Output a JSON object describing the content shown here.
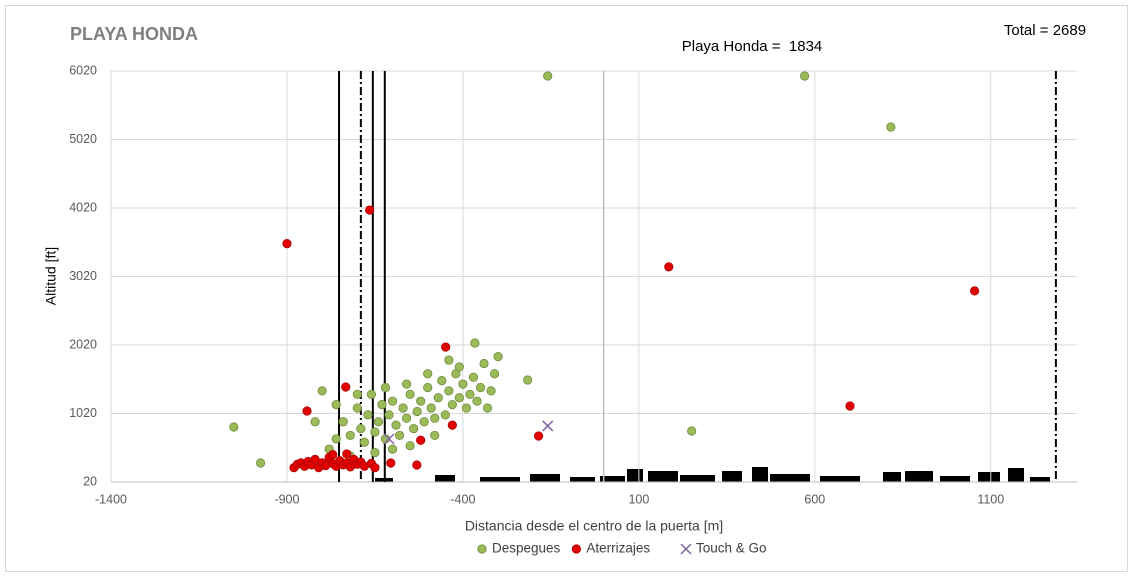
{
  "chart_data": {
    "type": "scatter",
    "title": "PLAYA HONDA",
    "total_label": "Total = 2689",
    "subtitle": "Playa Honda =  1834",
    "xlabel": "Distancia desde el centro de la puerta [m]",
    "ylabel": "Altitud [ft]",
    "xlim": [
      -1400,
      1345
    ],
    "ylim": [
      20,
      6020
    ],
    "xticks": [
      -1400,
      -900,
      -400,
      100,
      600,
      1100
    ],
    "yticks": [
      20,
      1020,
      2020,
      3020,
      4020,
      5020,
      6020
    ],
    "grid": true,
    "vlines": [
      {
        "x": -752,
        "style": "solid",
        "color": "#000000"
      },
      {
        "x": -690,
        "style": "dashdot",
        "color": "#000000"
      },
      {
        "x": -656,
        "style": "solid",
        "color": "#000000"
      },
      {
        "x": -622,
        "style": "solid",
        "color": "#000000"
      },
      {
        "x": 1285,
        "style": "dashdot",
        "color": "#000000"
      },
      {
        "x": 0,
        "style": "solid",
        "color": "#bfbfbf"
      }
    ],
    "series": [
      {
        "name": "Despegues",
        "color": "#9bbb59",
        "marker": "circle",
        "x": [
          -1051,
          -975,
          -159,
          571,
          816,
          -216,
          250,
          -366,
          -780,
          -760,
          -740,
          -720,
          -700,
          -690,
          -680,
          -670,
          -660,
          -650,
          -640,
          -630,
          -620,
          -610,
          -600,
          -590,
          -580,
          -570,
          -560,
          -550,
          -540,
          -530,
          -520,
          -510,
          -500,
          -490,
          -480,
          -470,
          -460,
          -450,
          -440,
          -430,
          -420,
          -410,
          -400,
          -390,
          -380,
          -370,
          -360,
          -350,
          -340,
          -330,
          -320,
          -300,
          -310,
          -800,
          -820,
          -760,
          -720,
          -650,
          -600,
          -550,
          -480,
          -700,
          -620,
          -500,
          -440,
          -410,
          -560
        ],
        "values": [
          823,
          297,
          5947,
          5947,
          5203,
          1509,
          765,
          2049,
          500,
          650,
          900,
          700,
          1100,
          800,
          600,
          1000,
          1300,
          750,
          900,
          1150,
          650,
          1000,
          1200,
          850,
          700,
          1100,
          950,
          1300,
          800,
          1050,
          1200,
          900,
          1400,
          1100,
          950,
          1250,
          1500,
          1000,
          1350,
          1150,
          1600,
          1250,
          1450,
          1100,
          1300,
          1550,
          1200,
          1400,
          1750,
          1100,
          1350,
          1850,
          1600,
          1350,
          900,
          1150,
          400,
          450,
          500,
          550,
          700,
          1300,
          1400,
          1600,
          1800,
          1700,
          1450
        ]
      },
      {
        "name": "Aterrizajes",
        "color": "#e00000",
        "marker": "circle",
        "x": [
          -900,
          -665,
          185,
          1054,
          -449,
          700,
          -185,
          -430,
          -520,
          -531,
          -605,
          -843,
          -733,
          -880,
          -870,
          -860,
          -850,
          -840,
          -830,
          -820,
          -810,
          -800,
          -790,
          -780,
          -770,
          -760,
          -750,
          -740,
          -730,
          -720,
          -710,
          -700,
          -690,
          -680,
          -660,
          -650,
          -770,
          -730
        ],
        "values": [
          3500,
          3990,
          3160,
          2810,
          1990,
          1130,
          692,
          850,
          630,
          268,
          297,
          1057,
          1407,
          230,
          280,
          300,
          250,
          320,
          270,
          350,
          230,
          300,
          260,
          380,
          290,
          250,
          330,
          270,
          300,
          240,
          350,
          280,
          310,
          250,
          290,
          230,
          420,
          430
        ]
      },
      {
        "name": "Touch & Go",
        "color": "#8064a2",
        "marker": "x",
        "x": [
          -610,
          -159
        ],
        "values": [
          650,
          838
        ]
      }
    ]
  }
}
